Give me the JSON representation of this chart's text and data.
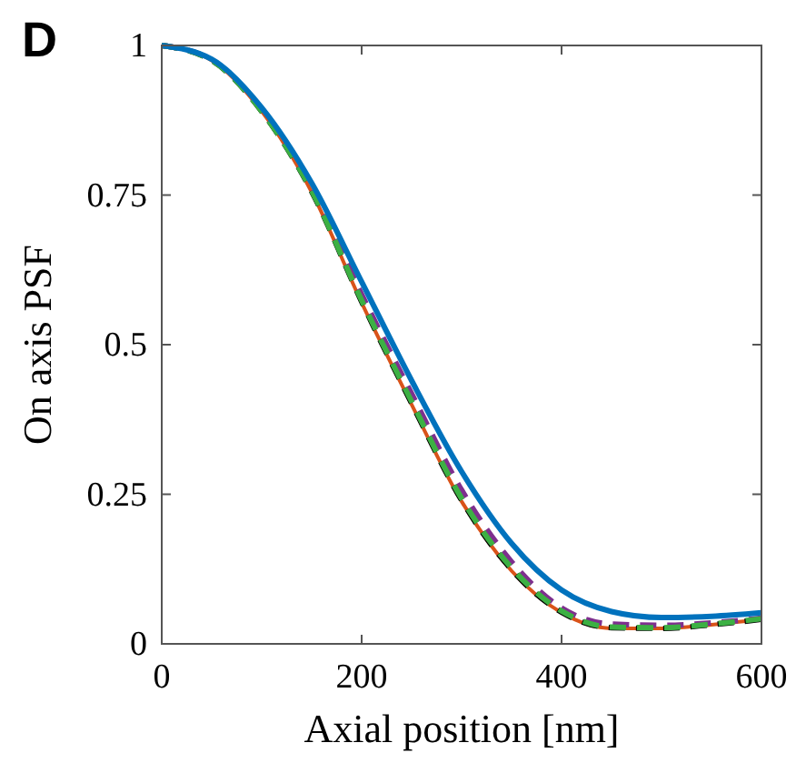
{
  "chart_data": {
    "type": "line",
    "xlabel": "Axial position [nm]",
    "ylabel": "On axis PSF",
    "annotations": [
      "D"
    ],
    "x": [
      0,
      50,
      100,
      150,
      200,
      250,
      300,
      350,
      400,
      450,
      500,
      550,
      600
    ],
    "xlim": [
      0,
      600
    ],
    "xticks": [
      0,
      200,
      400,
      600
    ],
    "ylim": [
      0,
      1
    ],
    "yticks": [
      0,
      0.25,
      0.5,
      0.75,
      1
    ],
    "grid": false,
    "series": [
      {
        "color": "#d95319",
        "line_style": "solid",
        "values": [
          1,
          0.975,
          0.89,
          0.755,
          0.57,
          0.4,
          0.238,
          0.122,
          0.052,
          0.026,
          0.026,
          0.032,
          0.041
        ]
      },
      {
        "color": "#000000",
        "line_style": "dashed",
        "values": [
          1,
          0.975,
          0.89,
          0.756,
          0.572,
          0.402,
          0.24,
          0.124,
          0.053,
          0.027,
          0.026,
          0.032,
          0.041
        ]
      },
      {
        "color": "#7e2f8e",
        "line_style": "dashed",
        "values": [
          1,
          0.976,
          0.892,
          0.762,
          0.584,
          0.418,
          0.257,
          0.137,
          0.06,
          0.033,
          0.031,
          0.035,
          0.043
        ]
      },
      {
        "color": "#3cb043",
        "line_style": "dashed",
        "values": [
          1,
          0.975,
          0.89,
          0.757,
          0.574,
          0.405,
          0.243,
          0.127,
          0.055,
          0.028,
          0.027,
          0.033,
          0.042
        ]
      },
      {
        "color": "#0072bd",
        "line_style": "solid",
        "values": [
          1,
          0.977,
          0.896,
          0.77,
          0.605,
          0.44,
          0.288,
          0.168,
          0.09,
          0.054,
          0.044,
          0.046,
          0.052
        ]
      }
    ]
  }
}
